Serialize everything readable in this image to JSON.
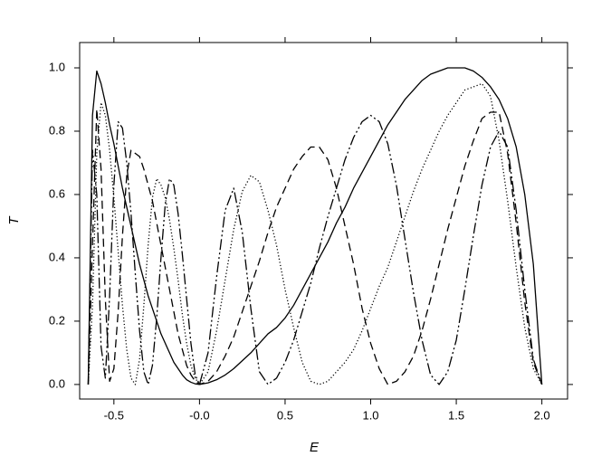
{
  "chart_data": {
    "type": "line",
    "x_label": "E",
    "y_label": "T",
    "xlim": [
      -0.7,
      2.15
    ],
    "ylim": [
      -0.046,
      1.08
    ],
    "xticks": [
      -0.5,
      {
        "value": 0,
        "label": "-0.0"
      },
      0.5,
      {
        "value": 1,
        "label": "1.0"
      },
      1.5,
      {
        "value": 2,
        "label": "2.0"
      }
    ],
    "yticks": [
      {
        "value": 0,
        "label": "0.0"
      },
      0.2,
      0.4,
      0.6,
      0.8,
      {
        "value": 1,
        "label": "1.0"
      }
    ],
    "grid": false,
    "x": [
      -0.65,
      -0.625,
      -0.6,
      -0.575,
      -0.55,
      -0.525,
      -0.5,
      -0.475,
      -0.45,
      -0.425,
      -0.4,
      -0.375,
      -0.35,
      -0.325,
      -0.3,
      -0.275,
      -0.25,
      -0.225,
      -0.2,
      -0.175,
      -0.15,
      -0.125,
      -0.1,
      -0.075,
      -0.05,
      -0.025,
      0,
      0.05,
      0.1,
      0.15,
      0.2,
      0.25,
      0.3,
      0.35,
      0.4,
      0.45,
      0.5,
      0.55,
      0.6,
      0.65,
      0.7,
      0.75,
      0.8,
      0.85,
      0.9,
      0.95,
      1.0,
      1.05,
      1.1,
      1.15,
      1.2,
      1.25,
      1.3,
      1.35,
      1.4,
      1.45,
      1.5,
      1.55,
      1.6,
      1.65,
      1.7,
      1.75,
      1.8,
      1.85,
      1.9,
      1.95,
      2.0
    ],
    "series": [
      {
        "color": "#000000",
        "style": "solid",
        "values": [
          0,
          0.85,
          0.99,
          0.95,
          0.89,
          0.82,
          0.76,
          0.69,
          0.62,
          0.56,
          0.5,
          0.44,
          0.38,
          0.33,
          0.28,
          0.24,
          0.2,
          0.16,
          0.13,
          0.1,
          0.07,
          0.05,
          0.03,
          0.015,
          0.007,
          0.002,
          0,
          0.005,
          0.015,
          0.03,
          0.05,
          0.075,
          0.1,
          0.13,
          0.16,
          0.18,
          0.21,
          0.25,
          0.3,
          0.35,
          0.4,
          0.45,
          0.51,
          0.56,
          0.62,
          0.67,
          0.72,
          0.77,
          0.82,
          0.86,
          0.9,
          0.93,
          0.96,
          0.98,
          0.99,
          1.0,
          1.0,
          1.0,
          0.99,
          0.97,
          0.94,
          0.9,
          0.84,
          0.75,
          0.6,
          0.38,
          0
        ]
      },
      {
        "color": "#000000",
        "style": "dotted",
        "values": [
          0,
          0.25,
          0.73,
          0.89,
          0.85,
          0.74,
          0.59,
          0.42,
          0.25,
          0.11,
          0.02,
          0,
          0.08,
          0.25,
          0.44,
          0.59,
          0.65,
          0.63,
          0.59,
          0.52,
          0.43,
          0.33,
          0.22,
          0.13,
          0.06,
          0.02,
          0,
          0.04,
          0.17,
          0.33,
          0.49,
          0.61,
          0.66,
          0.64,
          0.55,
          0.44,
          0.3,
          0.18,
          0.07,
          0.01,
          0,
          0.01,
          0.04,
          0.07,
          0.11,
          0.17,
          0.24,
          0.31,
          0.37,
          0.45,
          0.53,
          0.61,
          0.68,
          0.74,
          0.8,
          0.85,
          0.89,
          0.93,
          0.94,
          0.95,
          0.91,
          0.77,
          0.58,
          0.37,
          0.18,
          0.05,
          0
        ]
      },
      {
        "color": "#000000",
        "style": "dashed",
        "values": [
          0,
          0.44,
          0.87,
          0.68,
          0.27,
          0.01,
          0.05,
          0.23,
          0.47,
          0.66,
          0.74,
          0.73,
          0.72,
          0.68,
          0.63,
          0.58,
          0.51,
          0.44,
          0.37,
          0.3,
          0.23,
          0.16,
          0.11,
          0.06,
          0.03,
          0.01,
          0,
          0.01,
          0.04,
          0.09,
          0.15,
          0.23,
          0.31,
          0.39,
          0.48,
          0.56,
          0.62,
          0.68,
          0.72,
          0.75,
          0.75,
          0.71,
          0.62,
          0.5,
          0.38,
          0.24,
          0.13,
          0.05,
          0,
          0.01,
          0.04,
          0.09,
          0.17,
          0.27,
          0.38,
          0.49,
          0.59,
          0.69,
          0.77,
          0.84,
          0.86,
          0.86,
          0.73,
          0.51,
          0.26,
          0.07,
          0
        ]
      },
      {
        "color": "#000000",
        "style": "dashdotdot",
        "values": [
          0,
          0.74,
          0.6,
          0.12,
          0.02,
          0.28,
          0.63,
          0.83,
          0.81,
          0.7,
          0.54,
          0.35,
          0.17,
          0.04,
          0,
          0.06,
          0.21,
          0.4,
          0.57,
          0.65,
          0.63,
          0.54,
          0.41,
          0.27,
          0.13,
          0.03,
          0,
          0.1,
          0.34,
          0.55,
          0.62,
          0.48,
          0.24,
          0.04,
          0,
          0.02,
          0.07,
          0.14,
          0.23,
          0.32,
          0.43,
          0.53,
          0.62,
          0.71,
          0.78,
          0.83,
          0.85,
          0.83,
          0.76,
          0.63,
          0.46,
          0.29,
          0.14,
          0.03,
          0,
          0.04,
          0.14,
          0.3,
          0.47,
          0.63,
          0.75,
          0.8,
          0.75,
          0.55,
          0.3,
          0.08,
          0
        ]
      }
    ]
  }
}
